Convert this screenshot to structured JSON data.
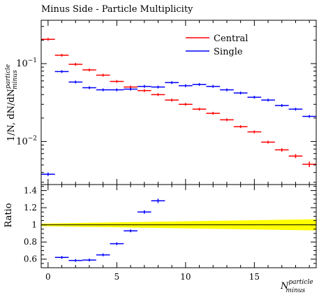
{
  "chart_data": [
    {
      "type": "line",
      "title": "Minus Side - Particle Multiplicity",
      "ylabel": "1/N, dN/dN",
      "ylabel_sup": "particle",
      "ylabel_sub": "minus",
      "yscale": "log",
      "ylim": [
        0.0028,
        0.36
      ],
      "xlim": [
        -0.5,
        19.5
      ],
      "yticks": [
        {
          "value": 0.1,
          "base": "10",
          "exp": "−1"
        },
        {
          "value": 0.01,
          "base": "10",
          "exp": "−2"
        }
      ],
      "legend_position": "top-right",
      "series": [
        {
          "name": "Central",
          "color": "#ff0000",
          "x": [
            0,
            1,
            2,
            3,
            4,
            5,
            6,
            7,
            8,
            9,
            10,
            11,
            12,
            13,
            14,
            15,
            16,
            17,
            18,
            19
          ],
          "y": [
            0.205,
            0.128,
            0.098,
            0.083,
            0.071,
            0.059,
            0.05,
            0.045,
            0.04,
            0.034,
            0.03,
            0.026,
            0.023,
            0.019,
            0.0155,
            0.0133,
            0.0098,
            0.0078,
            0.0065,
            0.0051
          ],
          "yerr_frac": [
            0.01,
            0.01,
            0.01,
            0.01,
            0.01,
            0.01,
            0.01,
            0.01,
            0.01,
            0.012,
            0.014,
            0.015,
            0.017,
            0.02,
            0.03,
            0.03,
            0.04,
            0.05,
            0.06,
            0.08
          ]
        },
        {
          "name": "Single",
          "color": "#0000ff",
          "x": [
            0,
            1,
            2,
            3,
            4,
            5,
            6,
            7,
            8,
            9,
            10,
            11,
            12,
            13,
            14,
            15,
            16,
            17,
            18,
            19
          ],
          "y": [
            0.0038,
            0.079,
            0.058,
            0.049,
            0.046,
            0.046,
            0.047,
            0.051,
            0.05,
            0.057,
            0.052,
            0.054,
            0.051,
            0.046,
            0.042,
            0.037,
            0.034,
            0.029,
            0.026,
            0.021
          ],
          "yerr_frac": [
            0.05,
            0.01,
            0.01,
            0.01,
            0.01,
            0.01,
            0.01,
            0.01,
            0.01,
            0.01,
            0.01,
            0.01,
            0.01,
            0.01,
            0.01,
            0.01,
            0.012,
            0.012,
            0.013,
            0.015
          ]
        }
      ]
    },
    {
      "type": "line",
      "ylabel": "Ratio",
      "xlabel": "N",
      "xlabel_sup": "particle",
      "xlabel_sub": "minus",
      "xlim": [
        -0.5,
        19.5
      ],
      "ylim": [
        0.5,
        1.47
      ],
      "xticks": [
        0,
        5,
        10,
        15
      ],
      "yticks": [
        "0.6",
        "0.8",
        "1",
        "1.2",
        "1.4"
      ],
      "reference_line": 1.0,
      "band": {
        "color": "#ffff00",
        "x": [
          -0.5,
          19.5
        ],
        "lower": [
          0.985,
          0.935
        ],
        "upper": [
          1.015,
          1.065
        ]
      },
      "series": [
        {
          "color": "#0000ff",
          "x": [
            1,
            2,
            3,
            4,
            5,
            6,
            7,
            8
          ],
          "y": [
            0.62,
            0.585,
            0.59,
            0.65,
            0.78,
            0.93,
            1.15,
            1.28
          ],
          "yerr": [
            0.008,
            0.008,
            0.008,
            0.01,
            0.012,
            0.015,
            0.02,
            0.025
          ]
        }
      ]
    }
  ]
}
